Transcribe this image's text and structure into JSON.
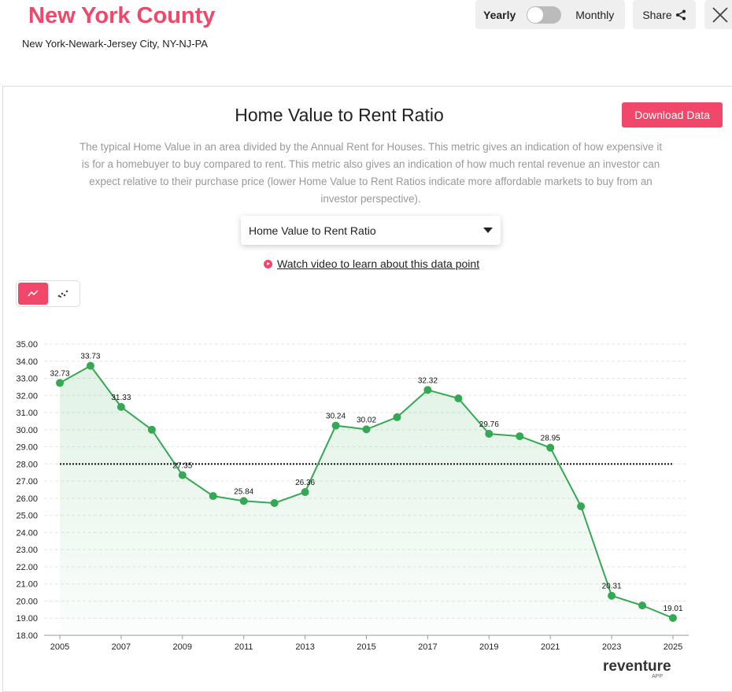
{
  "header": {
    "title": "New York County",
    "subtitle": "New York-Newark-Jersey City, NY-NJ-PA",
    "toggle_left": "Yearly",
    "toggle_right": "Monthly",
    "toggle_state": "Yearly",
    "share_label": "Share",
    "close_icon": "close-icon"
  },
  "card": {
    "title": "Home Value to Rent Ratio",
    "download_label": "Download Data",
    "description": "The typical Home Value in an area divided by the Annual Rent for Houses. This metric gives an indication of how expensive it is for a homebuyer to buy compared to rent. This metric also gives an indication of how much rental revenue an investor can expect relative to their purchase price (lower Home Value to Rent Ratios indicate more affordable markets to buy from an investor perspective).",
    "select_value": "Home Value to Rent Ratio",
    "video_link": "Watch video to learn about this data point",
    "chart_types": [
      "line",
      "scatter"
    ],
    "active_chart_type": "line"
  },
  "logo": {
    "text": "reventure",
    "sub": "APP"
  },
  "colors": {
    "accent": "#f0476a",
    "line": "#34a853"
  },
  "chart_data": {
    "type": "line",
    "x": [
      2005,
      2006,
      2007,
      2008,
      2009,
      2010,
      2011,
      2012,
      2013,
      2014,
      2015,
      2016,
      2017,
      2018,
      2019,
      2020,
      2021,
      2022,
      2023,
      2024,
      2025
    ],
    "values": [
      32.73,
      33.73,
      31.33,
      30.0,
      27.35,
      26.13,
      25.84,
      25.72,
      26.36,
      30.24,
      30.02,
      30.73,
      32.32,
      31.83,
      29.76,
      29.62,
      28.95,
      25.53,
      20.31,
      19.74,
      19.01
    ],
    "data_labels": {
      "2005": "32.73",
      "2006": "33.73",
      "2007": "31.33",
      "2009": "27.35",
      "2011": "25.84",
      "2013": "26.36",
      "2014": "30.24",
      "2015": "30.02",
      "2017": "32.32",
      "2019": "29.76",
      "2021": "28.95",
      "2023": "20.31",
      "2025": "19.01"
    },
    "reference_line": 28.0,
    "ylim": [
      18,
      35
    ],
    "yticks": [
      "18.00",
      "19.00",
      "20.00",
      "21.00",
      "22.00",
      "23.00",
      "24.00",
      "25.00",
      "26.00",
      "27.00",
      "28.00",
      "29.00",
      "30.00",
      "31.00",
      "32.00",
      "33.00",
      "34.00",
      "35.00"
    ],
    "xticks": [
      "2005",
      "2007",
      "2009",
      "2011",
      "2013",
      "2015",
      "2017",
      "2019",
      "2021",
      "2023",
      "2025"
    ],
    "grid": true,
    "area_fill": true
  }
}
